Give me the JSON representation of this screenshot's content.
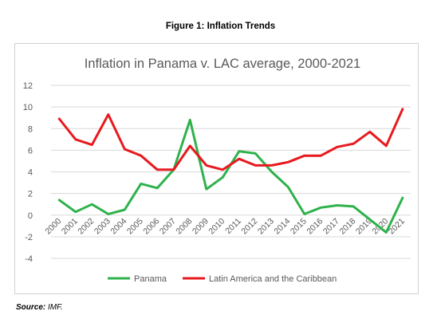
{
  "figure_title": "Figure 1: Inflation Trends",
  "source_label": "Source:",
  "source_value": "IMF.",
  "chart_data": {
    "type": "line",
    "title": "Inflation in Panama v. LAC average, 2000-2021",
    "x": [
      "2000",
      "2001",
      "2002",
      "2003",
      "2004",
      "2005",
      "2006",
      "2007",
      "2008",
      "2009",
      "2010",
      "2011",
      "2012",
      "2013",
      "2014",
      "2015",
      "2016",
      "2017",
      "2018",
      "2019",
      "2020",
      "2021"
    ],
    "ylim": [
      -4,
      12
    ],
    "yticks": [
      12,
      10,
      8,
      6,
      4,
      2,
      0,
      -2,
      -4
    ],
    "grid": true,
    "legend_position": "bottom",
    "series": [
      {
        "name": "Panama",
        "color": "#2eb24c",
        "values": [
          1.4,
          0.3,
          1.0,
          0.1,
          0.5,
          2.9,
          2.5,
          4.2,
          8.8,
          2.4,
          3.5,
          5.9,
          5.7,
          4.0,
          2.6,
          0.1,
          0.7,
          0.9,
          0.8,
          -0.4,
          -1.6,
          1.6
        ]
      },
      {
        "name": "Latin America and the Caribbean",
        "color": "#e8191e",
        "values": [
          8.9,
          7.0,
          6.5,
          9.3,
          6.1,
          5.5,
          4.2,
          4.2,
          6.4,
          4.6,
          4.2,
          5.2,
          4.6,
          4.6,
          4.9,
          5.5,
          5.5,
          6.3,
          6.6,
          7.7,
          6.4,
          9.8
        ]
      }
    ]
  }
}
